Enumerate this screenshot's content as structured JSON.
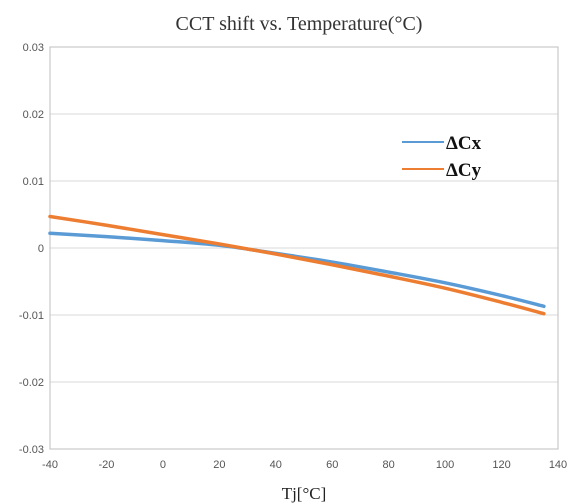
{
  "chart_data": {
    "type": "line",
    "title": "CCT shift vs. Temperature(°C)",
    "xlabel": "Tj[°C]",
    "ylabel": "",
    "xlim": [
      -40,
      140
    ],
    "ylim": [
      -0.03,
      0.03
    ],
    "x_ticks": [
      -40,
      -20,
      0,
      20,
      40,
      60,
      80,
      100,
      120,
      140
    ],
    "y_ticks": [
      -0.03,
      -0.02,
      -0.01,
      0,
      0.01,
      0.02,
      0.03
    ],
    "x_tick_labels": [
      "-40",
      "-20",
      "0",
      "20",
      "40",
      "60",
      "80",
      "100",
      "120",
      "140"
    ],
    "y_tick_labels": [
      "-0.03",
      "-0.02",
      "-0.01",
      "0",
      "0.01",
      "0.02",
      "0.03"
    ],
    "grid": "horizontal",
    "legend_position": "right",
    "series": [
      {
        "name": "ΔCx",
        "color": "#5b9bd5",
        "x": [
          -40,
          -20,
          0,
          20,
          40,
          60,
          80,
          100,
          120,
          135
        ],
        "y": [
          0.0022,
          0.0017,
          0.0011,
          0.0004,
          -0.0008,
          -0.0021,
          -0.0036,
          -0.0052,
          -0.0071,
          -0.0087
        ]
      },
      {
        "name": "ΔCy",
        "color": "#ed7d31",
        "x": [
          -40,
          -20,
          0,
          20,
          40,
          60,
          80,
          100,
          120,
          135
        ],
        "y": [
          0.0047,
          0.0034,
          0.002,
          0.0006,
          -0.0009,
          -0.0025,
          -0.0042,
          -0.006,
          -0.0081,
          -0.0098
        ]
      }
    ]
  }
}
